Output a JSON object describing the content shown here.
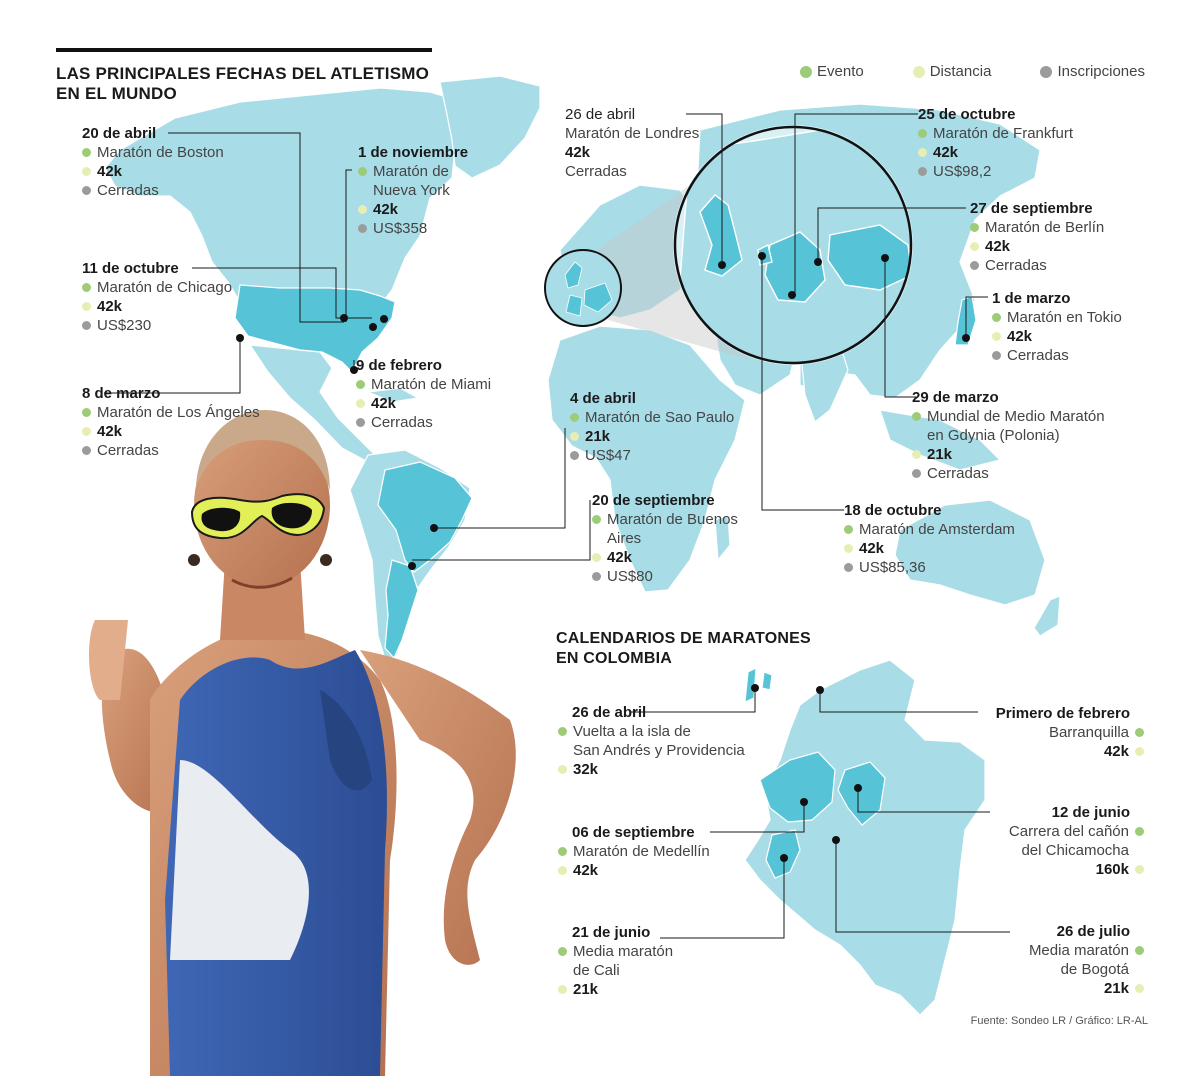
{
  "title": {
    "world_line1": "LAS PRINCIPALES FECHAS DEL ATLETISMO",
    "world_line2": "EN EL MUNDO",
    "colombia_line1": "CALENDARIOS DE MARATONES",
    "colombia_line2": "EN COLOMBIA"
  },
  "legend": [
    {
      "label": "Evento",
      "color": "#9ccc77"
    },
    {
      "label": "Distancia",
      "color": "#e6eeb4"
    },
    {
      "label": "Inscripciones",
      "color": "#9b9b9b"
    }
  ],
  "colors": {
    "land": "#a8dde8",
    "highlight": "#56c3d6",
    "border": "#ffffff",
    "leader": "#1a1a1a"
  },
  "world_events": [
    {
      "id": "boston",
      "date": "20 de abril",
      "event": [
        "Maratón de Boston"
      ],
      "distance": "42k",
      "registration": "Cerradas"
    },
    {
      "id": "nuevayork",
      "date": "1 de noviembre",
      "event": [
        "Maratón de",
        "Nueva York"
      ],
      "distance": "42k",
      "registration": "US$358"
    },
    {
      "id": "chicago",
      "date": "11 de octubre",
      "event": [
        "Maratón de Chicago"
      ],
      "distance": "42k",
      "registration": "US$230"
    },
    {
      "id": "losangeles",
      "date": "8 de marzo",
      "event": [
        "Maratón de Los Ángeles"
      ],
      "distance": "42k",
      "registration": "Cerradas"
    },
    {
      "id": "miami",
      "date": "9 de febrero",
      "event": [
        "Maratón de Miami"
      ],
      "distance": "42k",
      "registration": "Cerradas"
    },
    {
      "id": "saopaulo",
      "date": "4 de abril",
      "event": [
        "Maratón de Sao Paulo"
      ],
      "distance": "21k",
      "registration": "US$47"
    },
    {
      "id": "buenosaires",
      "date": "20 de septiembre",
      "event": [
        "Maratón de Buenos",
        "Aires"
      ],
      "distance": "42k",
      "registration": "US$80"
    },
    {
      "id": "londres",
      "date": "26 de abril",
      "event": [
        "Maratón de Londres"
      ],
      "distance": "42k",
      "registration": "Cerradas"
    },
    {
      "id": "frankfurt",
      "date": "25 de octubre",
      "event": [
        "Maratón de Frankfurt"
      ],
      "distance": "42k",
      "registration": "US$98,2"
    },
    {
      "id": "berlin",
      "date": "27 de septiembre",
      "event": [
        "Maratón de Berlín"
      ],
      "distance": "42k",
      "registration": "Cerradas"
    },
    {
      "id": "tokio",
      "date": "1 de marzo",
      "event": [
        "Maratón en Tokio"
      ],
      "distance": "42k",
      "registration": "Cerradas"
    },
    {
      "id": "gdynia",
      "date": "29 de marzo",
      "event": [
        "Mundial de Medio Maratón",
        "en Gdynia (Polonia)"
      ],
      "distance": "21k",
      "registration": "Cerradas"
    },
    {
      "id": "amsterdam",
      "date": "18 de octubre",
      "event": [
        "Maratón de Amsterdam"
      ],
      "distance": "42k",
      "registration": "US$85,36"
    }
  ],
  "colombia_events": [
    {
      "id": "sanandres",
      "date": "26 de abril",
      "event": [
        "Vuelta a la isla de",
        "San Andrés y Providencia"
      ],
      "distance": "32k"
    },
    {
      "id": "medellin",
      "date": "06 de septiembre",
      "event": [
        "Maratón de Medellín"
      ],
      "distance": "42k"
    },
    {
      "id": "cali",
      "date": "21 de junio",
      "event": [
        "Media maratón",
        "de Cali"
      ],
      "distance": "21k"
    },
    {
      "id": "barranquilla",
      "date": "Primero de febrero",
      "event": [
        "Barranquilla"
      ],
      "distance": "42k"
    },
    {
      "id": "chicamocha",
      "date": "12 de junio",
      "event": [
        "Carrera del cañón",
        "del Chicamocha"
      ],
      "distance": "160k"
    },
    {
      "id": "bogota",
      "date": "26 de julio",
      "event": [
        "Media maratón",
        "de Bogotá"
      ],
      "distance": "21k"
    }
  ],
  "source": "Fuente: Sondeo LR / Gráfico: LR-AL"
}
